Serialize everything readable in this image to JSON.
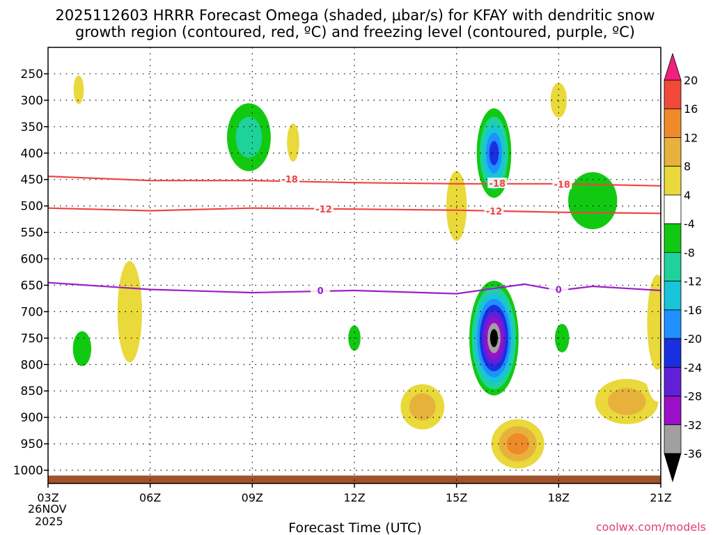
{
  "chart_data": {
    "type": "heatmap",
    "title_line1": "2025112603 HRRR Forecast Omega (shaded, μbar/s) for KFAY with dendritic snow",
    "title_line2": "growth region (contoured, red, ºC) and freezing level (contoured, purple, ºC)",
    "xlabel": "Forecast Time (UTC)",
    "ylabel": "",
    "credit": "coolwx.com/models",
    "date_label_line1": "26NOV",
    "date_label_line2": "2025",
    "x_range_hours": [
      3,
      21
    ],
    "y_range_hpa": [
      200,
      1025
    ],
    "x_ticks": [
      {
        "hour": 3,
        "label": "03Z"
      },
      {
        "hour": 6,
        "label": "06Z"
      },
      {
        "hour": 9,
        "label": "09Z"
      },
      {
        "hour": 12,
        "label": "12Z"
      },
      {
        "hour": 15,
        "label": "15Z"
      },
      {
        "hour": 18,
        "label": "18Z"
      },
      {
        "hour": 21,
        "label": "21Z"
      }
    ],
    "y_ticks": [
      {
        "p": 250,
        "label": "250"
      },
      {
        "p": 300,
        "label": "300"
      },
      {
        "p": 350,
        "label": "350"
      },
      {
        "p": 400,
        "label": "400"
      },
      {
        "p": 450,
        "label": "450"
      },
      {
        "p": 500,
        "label": "500"
      },
      {
        "p": 550,
        "label": "550"
      },
      {
        "p": 600,
        "label": "600"
      },
      {
        "p": 650,
        "label": "650"
      },
      {
        "p": 700,
        "label": "700"
      },
      {
        "p": 750,
        "label": "750"
      },
      {
        "p": 800,
        "label": "800"
      },
      {
        "p": 850,
        "label": "850"
      },
      {
        "p": 900,
        "label": "900"
      },
      {
        "p": 950,
        "label": "950"
      },
      {
        "p": 1000,
        "label": "1000"
      }
    ],
    "colorbar": [
      {
        "from": -40,
        "to": -36,
        "color": "#000000"
      },
      {
        "from": -36,
        "to": -32,
        "color": "#a0a0a0"
      },
      {
        "from": -32,
        "to": -28,
        "color": "#9b0fc7"
      },
      {
        "from": -28,
        "to": -24,
        "color": "#6020d8"
      },
      {
        "from": -24,
        "to": -20,
        "color": "#1a2fe0"
      },
      {
        "from": -20,
        "to": -16,
        "color": "#1e90ff"
      },
      {
        "from": -16,
        "to": -12,
        "color": "#18c4d8"
      },
      {
        "from": -12,
        "to": -8,
        "color": "#1fd29a"
      },
      {
        "from": -8,
        "to": -4,
        "color": "#12c912"
      },
      {
        "from": -4,
        "to": 4,
        "color": "#ffffff"
      },
      {
        "from": 4,
        "to": 8,
        "color": "#e9d93a"
      },
      {
        "from": 8,
        "to": 12,
        "color": "#e6b23c"
      },
      {
        "from": 12,
        "to": 16,
        "color": "#ef8a2a"
      },
      {
        "from": 16,
        "to": 20,
        "color": "#f24a3a"
      },
      {
        "from": 20,
        "to": 24,
        "color": "#f0207c"
      }
    ],
    "colorbar_labels": [
      "20",
      "16",
      "12",
      "8",
      "4",
      "-4",
      "-8",
      "-12",
      "-16",
      "-20",
      "-24",
      "-28",
      "-32",
      "-36"
    ],
    "colorbar_arrow_top_color": "#f0207c",
    "colorbar_arrow_bottom_color": "#000000",
    "ground_color": "#a0522d",
    "ground_top_hpa": 1010,
    "omega_features": [
      {
        "hour": 16.1,
        "p": 750,
        "rh": 0.8,
        "rp": 120,
        "value": -38
      },
      {
        "hour": 16.1,
        "p": 400,
        "rh": 0.6,
        "rp": 100,
        "value": -22
      },
      {
        "hour": 8.9,
        "p": 370,
        "rh": 0.9,
        "rp": 90,
        "value": -12
      },
      {
        "hour": 4.0,
        "p": 770,
        "rh": 0.45,
        "rp": 55,
        "value": -6
      },
      {
        "hour": 12.0,
        "p": 750,
        "rh": 0.3,
        "rp": 40,
        "value": -5
      },
      {
        "hour": 18.1,
        "p": 750,
        "rh": 0.35,
        "rp": 45,
        "value": -6
      },
      {
        "hour": 19.0,
        "p": 490,
        "rh": 1.2,
        "rp": 90,
        "value": -7
      },
      {
        "hour": 14.0,
        "p": 880,
        "rh": 0.9,
        "rp": 60,
        "value": 10
      },
      {
        "hour": 16.8,
        "p": 950,
        "rh": 1.0,
        "rp": 60,
        "value": 14
      },
      {
        "hour": 20.0,
        "p": 870,
        "rh": 1.3,
        "rp": 60,
        "value": 9
      },
      {
        "hour": 18.0,
        "p": 300,
        "rh": 0.4,
        "rp": 55,
        "value": 7
      },
      {
        "hour": 3.9,
        "p": 280,
        "rh": 0.25,
        "rp": 45,
        "value": 5
      },
      {
        "hour": 5.4,
        "p": 700,
        "rh": 0.6,
        "rp": 160,
        "value": 5
      },
      {
        "hour": 10.2,
        "p": 380,
        "rh": 0.3,
        "rp": 60,
        "value": 6
      },
      {
        "hour": 15.0,
        "p": 500,
        "rh": 0.5,
        "rp": 110,
        "value": 5
      },
      {
        "hour": 20.9,
        "p": 720,
        "rh": 0.5,
        "rp": 150,
        "value": 8
      }
    ],
    "contours": [
      {
        "label": "-18",
        "color": "#ee4444",
        "points": [
          [
            3,
            444
          ],
          [
            6,
            452
          ],
          [
            9,
            452
          ],
          [
            12,
            456
          ],
          [
            15,
            458
          ],
          [
            18,
            458
          ],
          [
            21,
            462
          ]
        ],
        "label_positions": [
          [
            10.1,
            449
          ],
          [
            18.1,
            459
          ],
          [
            16.2,
            457
          ]
        ]
      },
      {
        "label": "-12",
        "color": "#ee4444",
        "points": [
          [
            3,
            504
          ],
          [
            6,
            509
          ],
          [
            9,
            504
          ],
          [
            12,
            506
          ],
          [
            15,
            508
          ],
          [
            18,
            512
          ],
          [
            21,
            514
          ]
        ],
        "label_positions": [
          [
            11.1,
            506
          ],
          [
            16.1,
            510
          ]
        ]
      },
      {
        "label": "0",
        "color": "#9b1fc7",
        "points": [
          [
            3,
            645
          ],
          [
            6,
            658
          ],
          [
            9,
            664
          ],
          [
            12,
            660
          ],
          [
            15,
            666
          ],
          [
            17,
            648
          ],
          [
            18,
            660
          ],
          [
            19,
            652
          ],
          [
            21,
            660
          ]
        ],
        "label_positions": [
          [
            11.0,
            660
          ],
          [
            18.0,
            658
          ]
        ]
      }
    ]
  }
}
